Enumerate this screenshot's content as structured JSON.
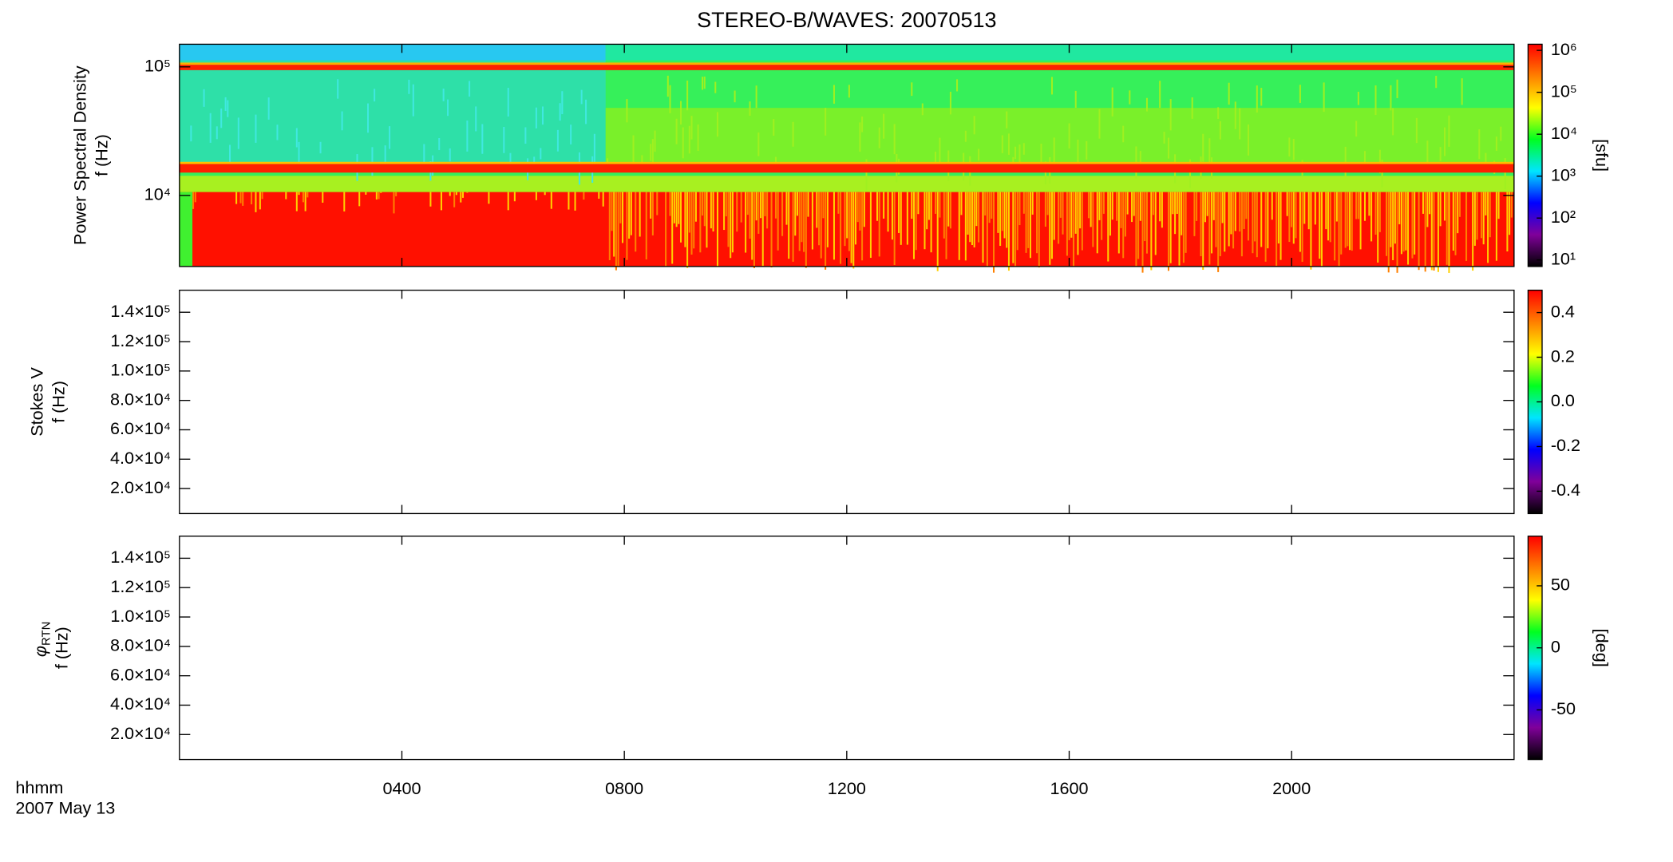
{
  "chart_data": [
    {
      "type": "heatmap",
      "title": "STEREO-B/WAVES: 20070513",
      "ylabel": [
        "Power Spectral Density",
        "f (Hz)"
      ],
      "ylog": true,
      "ylim": [
        2800,
        150000
      ],
      "yticks": [
        {
          "value": 10000,
          "label": "10⁴"
        },
        {
          "value": 100000,
          "label": "10⁵"
        }
      ],
      "colorbar": {
        "label": "[sfu]",
        "log": true,
        "clim": [
          7,
          1400000
        ],
        "colors": [
          "#000000",
          "#80009a",
          "#0000ff",
          "#00e5ff",
          "#00ff20",
          "#ffff00",
          "#ff8000",
          "#ff0000"
        ],
        "ticks": [
          {
            "value": 10,
            "label": "10¹"
          },
          {
            "value": 100,
            "label": "10²"
          },
          {
            "value": 1000,
            "label": "10³"
          },
          {
            "value": 10000,
            "label": "10⁴"
          },
          {
            "value": 100000,
            "label": "10⁵"
          },
          {
            "value": 1000000,
            "label": "10⁶"
          }
        ]
      }
    },
    {
      "type": "heatmap",
      "ylabel": [
        "Stokes V",
        "f (Hz)"
      ],
      "ylog": false,
      "ylim": [
        3000,
        155000
      ],
      "yticks": [
        {
          "value": 20000,
          "label": "2.0×10⁴"
        },
        {
          "value": 40000,
          "label": "4.0×10⁴"
        },
        {
          "value": 60000,
          "label": "6.0×10⁴"
        },
        {
          "value": 80000,
          "label": "8.0×10⁴"
        },
        {
          "value": 100000,
          "label": "1.0×10⁵"
        },
        {
          "value": 120000,
          "label": "1.2×10⁵"
        },
        {
          "value": 140000,
          "label": "1.4×10⁵"
        }
      ],
      "colorbar": {
        "log": false,
        "clim": [
          -0.5,
          0.5
        ],
        "colors": [
          "#000000",
          "#80009a",
          "#0000ff",
          "#00e5ff",
          "#00ff20",
          "#ffff00",
          "#ff8000",
          "#ff0000"
        ],
        "ticks": [
          -0.4,
          -0.2,
          {
            "value": 0,
            "label": "0.0"
          },
          0.2,
          0.4
        ]
      }
    },
    {
      "type": "heatmap",
      "ylabel_symbol": "φ",
      "ylabel_subscript": "RTN",
      "ylabel": [
        "f (Hz)"
      ],
      "ylog": false,
      "ylim": [
        3000,
        155000
      ],
      "yticks": [
        {
          "value": 20000,
          "label": "2.0×10⁴"
        },
        {
          "value": 40000,
          "label": "4.0×10⁴"
        },
        {
          "value": 60000,
          "label": "6.0×10⁴"
        },
        {
          "value": 80000,
          "label": "8.0×10⁴"
        },
        {
          "value": 100000,
          "label": "1.0×10⁵"
        },
        {
          "value": 120000,
          "label": "1.2×10⁵"
        },
        {
          "value": 140000,
          "label": "1.4×10⁵"
        }
      ],
      "colorbar": {
        "label": "[deg]",
        "log": false,
        "clim": [
          -90,
          90
        ],
        "colors": [
          "#000000",
          "#80009a",
          "#0000ff",
          "#00e5ff",
          "#00ff20",
          "#ffff00",
          "#ff8000",
          "#ff0000"
        ],
        "ticks": [
          -50,
          0,
          50
        ]
      },
      "xlabel": "hhmm",
      "date_label": "2007 May 13",
      "xlim": [
        0,
        24
      ],
      "xticks": [
        {
          "value": 4,
          "label": "0400"
        },
        {
          "value": 8,
          "label": "0800"
        },
        {
          "value": 12,
          "label": "1200"
        },
        {
          "value": 16,
          "label": "1600"
        },
        {
          "value": 20,
          "label": "2000"
        }
      ]
    }
  ]
}
